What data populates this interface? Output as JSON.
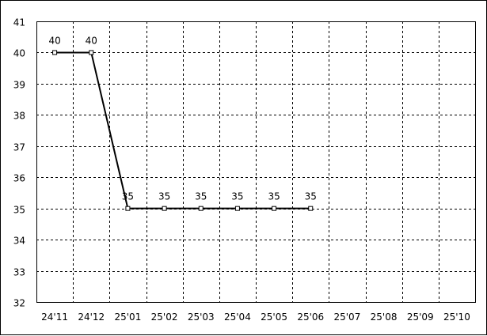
{
  "chart_data": {
    "type": "line",
    "categories": [
      "24'11",
      "24'12",
      "25'01",
      "25'02",
      "25'03",
      "25'04",
      "25'05",
      "25'06",
      "25'07",
      "25'08",
      "25'09",
      "25'10"
    ],
    "series": [
      {
        "values": [
          40,
          40,
          35,
          35,
          35,
          35,
          35,
          35,
          null,
          null,
          null,
          null
        ],
        "color": "#000000",
        "marker": "square",
        "data_labels": true
      }
    ],
    "title": "",
    "xlabel": "",
    "ylabel": "",
    "ylim": [
      32,
      41
    ],
    "yticks": [
      32,
      33,
      34,
      35,
      36,
      37,
      38,
      39,
      40,
      41
    ],
    "grid": "dashed",
    "legend": "none"
  }
}
